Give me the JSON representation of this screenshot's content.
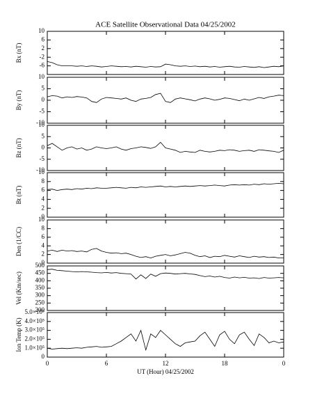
{
  "chart_data": [
    {
      "type": "line",
      "title": "ACE Satellite Observational Data   04/25/2002",
      "ylabel": "Bx (nT)",
      "color": "#000000",
      "x": [
        0,
        0.5,
        1,
        1.5,
        2,
        2.5,
        3,
        3.5,
        4,
        4.5,
        5,
        5.5,
        6,
        6.5,
        7,
        7.5,
        8,
        8.5,
        9,
        9.5,
        10,
        10.5,
        11,
        11.5,
        12,
        12.5,
        13,
        13.5,
        14,
        14.5,
        15,
        15.5,
        16,
        16.5,
        17,
        17.5,
        18,
        18.5,
        19,
        19.5,
        20,
        20.5,
        21,
        21.5,
        22,
        22.5,
        23,
        23.5,
        24
      ],
      "values": [
        -4,
        -4.5,
        -5.5,
        -6,
        -6,
        -6,
        -6.2,
        -6,
        -6.3,
        -6,
        -6.2,
        -6.5,
        -6.3,
        -6,
        -6.2,
        -6.4,
        -6.3,
        -6.5,
        -6.2,
        -6.4,
        -6.6,
        -6.3,
        -6.5,
        -6.4,
        -5.2,
        -5.5,
        -6,
        -6.2,
        -6,
        -6.3,
        -6.1,
        -6.4,
        -6.2,
        -6.5,
        -6.3,
        -6.6,
        -6.4,
        -6.2,
        -6.5,
        -6.6,
        -6.3,
        -6.5,
        -6.7,
        -6.4,
        -6.8,
        -6.5,
        -6.2,
        -6.4,
        -6
      ],
      "ylim": [
        -10,
        10
      ],
      "yticks": [
        -6,
        -2,
        2,
        6,
        10
      ]
    },
    {
      "type": "line",
      "ylabel": "By (nT)",
      "color": "#000000",
      "x": [
        0,
        0.5,
        1,
        1.5,
        2,
        2.5,
        3,
        3.5,
        4,
        4.5,
        5,
        5.5,
        6,
        6.5,
        7,
        7.5,
        8,
        8.5,
        9,
        9.5,
        10,
        10.5,
        11,
        11.5,
        12,
        12.5,
        13,
        13.5,
        14,
        14.5,
        15,
        15.5,
        16,
        16.5,
        17,
        17.5,
        18,
        18.5,
        19,
        19.5,
        20,
        20.5,
        21,
        21.5,
        22,
        22.5,
        23,
        23.5,
        24
      ],
      "values": [
        1.5,
        2,
        1.8,
        1,
        1.5,
        1.2,
        1.6,
        1.4,
        1,
        -0.5,
        -1,
        0.5,
        1.2,
        1,
        0.8,
        0.5,
        1,
        0,
        -0.5,
        0.5,
        0.8,
        1.2,
        2.5,
        3,
        -0.5,
        -1,
        0.5,
        1,
        0.6,
        0.2,
        -0.3,
        0.5,
        1,
        0.6,
        0,
        0.4,
        1,
        0.8,
        0.3,
        -0.2,
        0.5,
        0,
        0.6,
        1.2,
        0.8,
        1.5,
        1.8,
        2.2,
        2
      ],
      "ylim": [
        -10,
        10
      ],
      "yticks": [
        -10,
        -5,
        0,
        5,
        10
      ]
    },
    {
      "type": "line",
      "ylabel": "Bz (nT)",
      "color": "#000000",
      "x": [
        0,
        0.5,
        1,
        1.5,
        2,
        2.5,
        3,
        3.5,
        4,
        4.5,
        5,
        5.5,
        6,
        6.5,
        7,
        7.5,
        8,
        8.5,
        9,
        9.5,
        10,
        10.5,
        11,
        11.5,
        12,
        12.5,
        13,
        13.5,
        14,
        14.5,
        15,
        15.5,
        16,
        16.5,
        17,
        17.5,
        18,
        18.5,
        19,
        19.5,
        20,
        20.5,
        21,
        21.5,
        22,
        22.5,
        23,
        23.5,
        24
      ],
      "values": [
        1,
        2,
        0.5,
        -1,
        0,
        0.5,
        -0.5,
        0,
        -1,
        -0.5,
        0.5,
        0,
        -0.3,
        0,
        0.5,
        -0.5,
        -1,
        -0.3,
        0,
        0.5,
        0.2,
        -0.2,
        0.5,
        2.5,
        0,
        -0.5,
        -1,
        -2,
        -1.5,
        -1.8,
        -2,
        -1,
        -1.5,
        -1.8,
        -1.5,
        -1,
        -1.2,
        -0.8,
        -1,
        -1.5,
        -1.2,
        -1,
        -1.5,
        -0.8,
        -1,
        -1.3,
        -1.5,
        -2,
        -1
      ],
      "ylim": [
        -10,
        10
      ],
      "yticks": [
        -10,
        -5,
        0,
        5,
        10
      ]
    },
    {
      "type": "line",
      "ylabel": "Bt (nT)",
      "color": "#000000",
      "x": [
        0,
        0.5,
        1,
        1.5,
        2,
        2.5,
        3,
        3.5,
        4,
        4.5,
        5,
        5.5,
        6,
        6.5,
        7,
        7.5,
        8,
        8.5,
        9,
        9.5,
        10,
        10.5,
        11,
        11.5,
        12,
        12.5,
        13,
        13.5,
        14,
        14.5,
        15,
        15.5,
        16,
        16.5,
        17,
        17.5,
        18,
        18.5,
        19,
        19.5,
        20,
        20.5,
        21,
        21.5,
        22,
        22.5,
        23,
        23.5,
        24
      ],
      "values": [
        6.2,
        6.3,
        6,
        6.2,
        6.3,
        6.2,
        6.4,
        6.3,
        6.5,
        6.4,
        6.6,
        6.5,
        6.5,
        6.6,
        6.7,
        6.6,
        6.5,
        6.7,
        6.6,
        6.8,
        6.7,
        6.8,
        6.9,
        7,
        6.8,
        6.9,
        6.8,
        6.9,
        7,
        6.9,
        7,
        7.1,
        7,
        7.1,
        7.2,
        7.1,
        7,
        7.2,
        7.3,
        7.2,
        7.3,
        7.2,
        7.4,
        7.3,
        7.5,
        7.4,
        7.5,
        7.6,
        7.5
      ],
      "ylim": [
        0,
        10
      ],
      "yticks": [
        0,
        2,
        4,
        6,
        8,
        10
      ]
    },
    {
      "type": "line",
      "ylabel": "Den (1/CC)",
      "color": "#000000",
      "x": [
        0,
        0.5,
        1,
        1.5,
        2,
        2.5,
        3,
        3.5,
        4,
        4.5,
        5,
        5.5,
        6,
        6.5,
        7,
        7.5,
        8,
        8.5,
        9,
        9.5,
        10,
        10.5,
        11,
        11.5,
        12,
        12.5,
        13,
        13.5,
        14,
        14.5,
        15,
        15.5,
        16,
        16.5,
        17,
        17.5,
        18,
        18.5,
        19,
        19.5,
        20,
        20.5,
        21,
        21.5,
        22,
        22.5,
        23,
        23.5,
        24
      ],
      "values": [
        2.8,
        3,
        2.7,
        3,
        2.8,
        2.9,
        2.7,
        2.8,
        2.6,
        3.2,
        3.4,
        2.8,
        2.5,
        2.3,
        2.4,
        2.2,
        2.3,
        2,
        1.6,
        1.3,
        1.5,
        1.2,
        1.6,
        1.8,
        2,
        1.7,
        1.9,
        2.2,
        2.5,
        2.3,
        1.8,
        1.5,
        1.7,
        1.3,
        1.6,
        1.5,
        1.8,
        1.6,
        1.4,
        1.7,
        1.5,
        1.3,
        1.6,
        1.4,
        1.5,
        1.3,
        1.4,
        1.2,
        1.2
      ],
      "ylim": [
        0,
        10
      ],
      "yticks": [
        0,
        2,
        4,
        6,
        8,
        10
      ]
    },
    {
      "type": "line",
      "ylabel": "Vel (Km/sec)",
      "color": "#000000",
      "x": [
        0,
        0.5,
        1,
        1.5,
        2,
        2.5,
        3,
        3.5,
        4,
        4.5,
        5,
        5.5,
        6,
        6.5,
        7,
        7.5,
        8,
        8.5,
        9,
        9.5,
        10,
        10.5,
        11,
        11.5,
        12,
        12.5,
        13,
        13.5,
        14,
        14.5,
        15,
        15.5,
        16,
        16.5,
        17,
        17.5,
        18,
        18.5,
        19,
        19.5,
        20,
        20.5,
        21,
        21.5,
        22,
        22.5,
        23,
        23.5,
        24
      ],
      "values": [
        475,
        478,
        470,
        468,
        465,
        462,
        460,
        462,
        460,
        458,
        455,
        453,
        456,
        452,
        455,
        450,
        448,
        445,
        412,
        440,
        415,
        445,
        430,
        448,
        452,
        450,
        445,
        448,
        450,
        446,
        443,
        435,
        428,
        432,
        425,
        430,
        422,
        418,
        425,
        420,
        423,
        418,
        420,
        415,
        422,
        418,
        420,
        422,
        420
      ],
      "ylim": [
        200,
        500
      ],
      "yticks": [
        200,
        250,
        300,
        350,
        400,
        450,
        500
      ]
    },
    {
      "type": "line",
      "ylabel": "Ion Temp (K)",
      "color": "#000000",
      "xlabel": "UT (Hour)  04/25/2002",
      "x": [
        0,
        0.5,
        1,
        1.5,
        2,
        2.5,
        3,
        3.5,
        4,
        4.5,
        5,
        5.5,
        6,
        6.5,
        7,
        7.5,
        8,
        8.5,
        9,
        9.5,
        10,
        10.5,
        11,
        11.5,
        12,
        12.5,
        13,
        13.5,
        14,
        14.5,
        15,
        15.5,
        16,
        16.5,
        17,
        17.5,
        18,
        18.5,
        19,
        19.5,
        20,
        20.5,
        21,
        21.5,
        22,
        22.5,
        23,
        23.5,
        24
      ],
      "values": [
        100000,
        90000,
        95000,
        100000,
        95000,
        100000,
        105000,
        100000,
        110000,
        115000,
        120000,
        110000,
        115000,
        120000,
        150000,
        180000,
        220000,
        260000,
        180000,
        300000,
        80000,
        260000,
        220000,
        300000,
        250000,
        200000,
        150000,
        120000,
        160000,
        170000,
        180000,
        240000,
        280000,
        200000,
        120000,
        250000,
        290000,
        200000,
        150000,
        250000,
        280000,
        200000,
        130000,
        260000,
        220000,
        160000,
        180000,
        160000,
        170000
      ],
      "ylim": [
        0,
        500000
      ],
      "yticks": [
        0,
        {
          "value": 100000,
          "label": "1.0×10⁵"
        },
        {
          "value": 200000,
          "label": "2.0×10⁵"
        },
        {
          "value": 300000,
          "label": "3.0×10⁵"
        },
        {
          "value": 400000,
          "label": "4.0×10⁵"
        },
        {
          "value": 500000,
          "label": "5.0×10⁵"
        }
      ],
      "xlim": [
        0,
        24
      ],
      "xticks": [
        0,
        6,
        12,
        18,
        {
          "value": 24,
          "label": "0"
        }
      ]
    }
  ]
}
